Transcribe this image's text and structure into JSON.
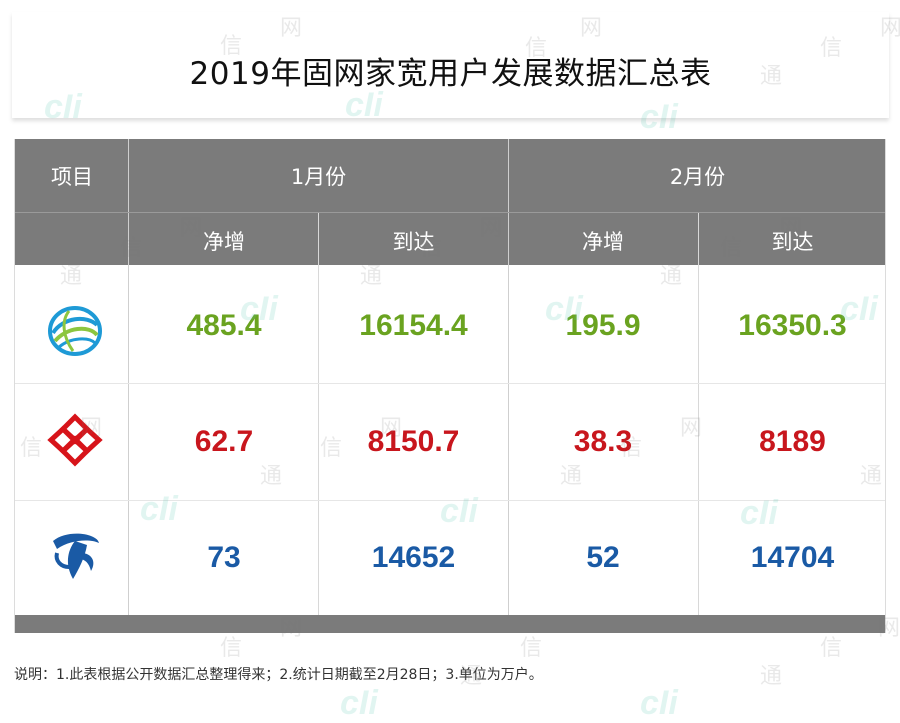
{
  "title": "2019年固网家宽用户发展数据汇总表",
  "header": {
    "item": "项目",
    "months": [
      "1月份",
      "2月份"
    ],
    "sub": [
      "净增",
      "到达",
      "净增",
      "到达"
    ]
  },
  "rows": [
    {
      "operator_icon": "china-mobile-logo",
      "color": "#6aa320",
      "values": [
        "485.4",
        "16154.4",
        "195.9",
        "16350.3"
      ]
    },
    {
      "operator_icon": "china-unicom-logo",
      "color": "#c8161d",
      "values": [
        "62.7",
        "8150.7",
        "38.3",
        "8189"
      ]
    },
    {
      "operator_icon": "china-telecom-logo",
      "color": "#1a5aa5",
      "values": [
        "73",
        "14652",
        "52",
        "14704"
      ]
    }
  ],
  "note": "说明：1.此表根据公开数据汇总整理得来；2.统计日期截至2月28日；3.单位为万户。",
  "watermark": {
    "logo": "cIi",
    "chars": [
      "信",
      "网",
      "通"
    ]
  }
}
